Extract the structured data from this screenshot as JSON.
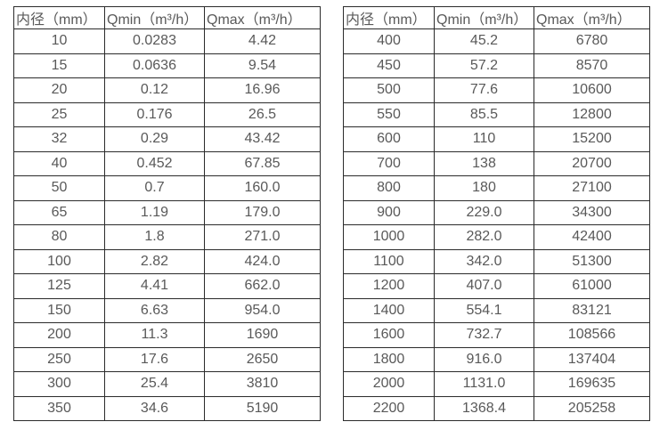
{
  "tables": [
    {
      "name": "flow-range-table-small-diameters",
      "headers": [
        "内径（mm）",
        "Qmin（m³/h）",
        "Qmax（m³/h）"
      ],
      "rows": [
        [
          "10",
          "0.0283",
          "4.42"
        ],
        [
          "15",
          "0.0636",
          "9.54"
        ],
        [
          "20",
          "0.12",
          "16.96"
        ],
        [
          "25",
          "0.176",
          "26.5"
        ],
        [
          "32",
          "0.29",
          "43.42"
        ],
        [
          "40",
          "0.452",
          "67.85"
        ],
        [
          "50",
          "0.7",
          "160.0"
        ],
        [
          "65",
          "1.19",
          "179.0"
        ],
        [
          "80",
          "1.8",
          "271.0"
        ],
        [
          "100",
          "2.82",
          "424.0"
        ],
        [
          "125",
          "4.41",
          "662.0"
        ],
        [
          "150",
          "6.63",
          "954.0"
        ],
        [
          "200",
          "11.3",
          "1690"
        ],
        [
          "250",
          "17.6",
          "2650"
        ],
        [
          "300",
          "25.4",
          "3810"
        ],
        [
          "350",
          "34.6",
          "5190"
        ]
      ]
    },
    {
      "name": "flow-range-table-large-diameters",
      "headers": [
        "内径（mm）",
        "Qmin（m³/h）",
        "Qmax（m³/h）"
      ],
      "rows": [
        [
          "400",
          "45.2",
          "6780"
        ],
        [
          "450",
          "57.2",
          "8570"
        ],
        [
          "500",
          "77.6",
          "10600"
        ],
        [
          "550",
          "85.5",
          "12800"
        ],
        [
          "600",
          "110",
          "15200"
        ],
        [
          "700",
          "138",
          "20700"
        ],
        [
          "800",
          "180",
          "27100"
        ],
        [
          "900",
          "229.0",
          "34300"
        ],
        [
          "1000",
          "282.0",
          "42400"
        ],
        [
          "1100",
          "342.0",
          "51300"
        ],
        [
          "1200",
          "407.0",
          "61000"
        ],
        [
          "1400",
          "554.1",
          "83121"
        ],
        [
          "1600",
          "732.7",
          "108566"
        ],
        [
          "1800",
          "916.0",
          "137404"
        ],
        [
          "2000",
          "1131.0",
          "169635"
        ],
        [
          "2200",
          "1368.4",
          "205258"
        ]
      ]
    }
  ],
  "colors": {
    "border": "#2b2b2b",
    "text": "#595959",
    "background": "#ffffff"
  }
}
